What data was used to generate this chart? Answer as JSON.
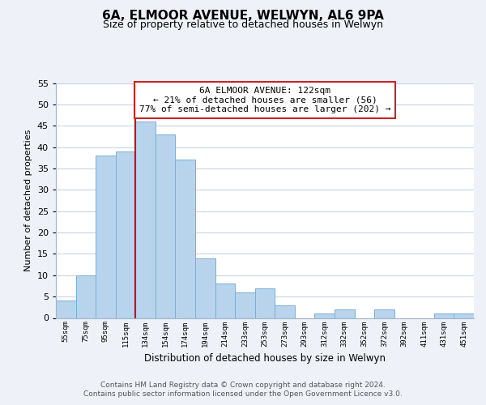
{
  "title": "6A, ELMOOR AVENUE, WELWYN, AL6 9PA",
  "subtitle": "Size of property relative to detached houses in Welwyn",
  "xlabel": "Distribution of detached houses by size in Welwyn",
  "ylabel": "Number of detached properties",
  "categories": [
    "55sqm",
    "75sqm",
    "95sqm",
    "115sqm",
    "134sqm",
    "154sqm",
    "174sqm",
    "194sqm",
    "214sqm",
    "233sqm",
    "253sqm",
    "273sqm",
    "293sqm",
    "312sqm",
    "332sqm",
    "352sqm",
    "372sqm",
    "392sqm",
    "411sqm",
    "431sqm",
    "451sqm"
  ],
  "values": [
    4,
    10,
    38,
    39,
    46,
    43,
    37,
    14,
    8,
    6,
    7,
    3,
    0,
    1,
    2,
    0,
    2,
    0,
    0,
    1,
    1
  ],
  "bar_color": "#b8d4ec",
  "bar_edge_color": "#7aafd4",
  "vline_color": "#cc0000",
  "ylim": [
    0,
    55
  ],
  "yticks": [
    0,
    5,
    10,
    15,
    20,
    25,
    30,
    35,
    40,
    45,
    50,
    55
  ],
  "annotation_line1": "6A ELMOOR AVENUE: 122sqm",
  "annotation_line2": "← 21% of detached houses are smaller (56)",
  "annotation_line3": "77% of semi-detached houses are larger (202) →",
  "footer1": "Contains HM Land Registry data © Crown copyright and database right 2024.",
  "footer2": "Contains public sector information licensed under the Open Government Licence v3.0.",
  "bg_color": "#eef2f8",
  "plot_bg_color": "#ffffff",
  "grid_color": "#c8d4e4",
  "vline_xindex": 3.5
}
